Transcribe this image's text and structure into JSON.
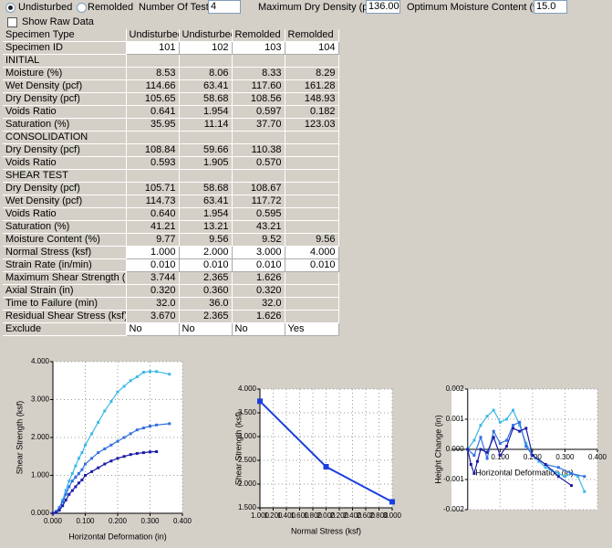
{
  "controls": {
    "type_options": [
      "Undisturbed",
      "Remolded"
    ],
    "number_of_tests_label": "Number Of Tests:",
    "number_of_tests": "4",
    "max_dry_density_label": "Maximum Dry Density (pcf):",
    "max_dry_density": "136.00",
    "optimum_moisture_label": "Optimum Moisture Content (%):",
    "optimum_moisture": "15.0",
    "show_raw_data": "Show Raw Data"
  },
  "table": {
    "rows": [
      {
        "label": "Specimen Type",
        "cells": [
          "Undisturbed",
          "Undisturbed",
          "Remolded",
          "Remolded"
        ]
      },
      {
        "label": "Specimen ID",
        "cells": [
          "101",
          "102",
          "103",
          "104"
        ],
        "editable": true
      },
      {
        "label": "INITIAL"
      },
      {
        "label": "Moisture (%)",
        "cells": [
          "8.53",
          "8.06",
          "8.33",
          "8.29"
        ]
      },
      {
        "label": "Wet Density (pcf)",
        "cells": [
          "114.66",
          "63.41",
          "117.60",
          "161.28"
        ]
      },
      {
        "label": "Dry Density (pcf)",
        "cells": [
          "105.65",
          "58.68",
          "108.56",
          "148.93"
        ]
      },
      {
        "label": "Voids Ratio",
        "cells": [
          "0.641",
          "1.954",
          "0.597",
          "0.182"
        ]
      },
      {
        "label": "Saturation (%)",
        "cells": [
          "35.95",
          "11.14",
          "37.70",
          "123.03"
        ]
      },
      {
        "label": "CONSOLIDATION"
      },
      {
        "label": "Dry Density (pcf)",
        "cells": [
          "108.84",
          "59.66",
          "110.38",
          null
        ]
      },
      {
        "label": "Voids Ratio",
        "cells": [
          "0.593",
          "1.905",
          "0.570",
          null
        ]
      },
      {
        "label": "SHEAR TEST"
      },
      {
        "label": "Dry Density (pcf)",
        "cells": [
          "105.71",
          "58.68",
          "108.67",
          null
        ]
      },
      {
        "label": "Wet Density (pcf)",
        "cells": [
          "114.73",
          "63.41",
          "117.72",
          null
        ]
      },
      {
        "label": "Voids Ratio",
        "cells": [
          "0.640",
          "1.954",
          "0.595",
          null
        ]
      },
      {
        "label": "Saturation (%)",
        "cells": [
          "41.21",
          "13.21",
          "43.21",
          null
        ]
      },
      {
        "label": "Moisture Content (%)",
        "cells": [
          "9.77",
          "9.56",
          "9.52",
          "9.56"
        ]
      },
      {
        "label": "Normal Stress (ksf)",
        "cells": [
          "1.000",
          "2.000",
          "3.000",
          "4.000"
        ],
        "editable": true
      },
      {
        "label": "Strain Rate (in/min)",
        "cells": [
          "0.010",
          "0.010",
          "0.010",
          "0.010"
        ],
        "editable": true
      },
      {
        "label": "Maximum Shear Strength (ksf)",
        "cells": [
          "3.744",
          "2.365",
          "1.626",
          null
        ]
      },
      {
        "label": "Axial Strain (in)",
        "cells": [
          "0.320",
          "0.360",
          "0.320",
          null
        ]
      },
      {
        "label": "Time to Failure (min)",
        "cells": [
          "32.0",
          "36.0",
          "32.0",
          null
        ]
      },
      {
        "label": "Residual Shear Stress (ksf)",
        "cells": [
          "3.670",
          "2.365",
          "1.626",
          null
        ]
      },
      {
        "label": "Exclude",
        "cells": [
          "No",
          "No",
          "No",
          "Yes"
        ],
        "editable": true
      }
    ]
  },
  "chart_data": [
    {
      "type": "line",
      "x_label": "Horizontal Deformation (in)",
      "y_label": "Shear Strength (ksf)",
      "grid": true,
      "xlim": [
        0,
        0.4
      ],
      "ylim": [
        0,
        4
      ],
      "xticks": [
        {
          "value": 0,
          "label": "0.000"
        },
        {
          "value": 0.1,
          "label": "0.100"
        },
        {
          "value": 0.2,
          "label": "0.200"
        },
        {
          "value": 0.3,
          "label": "0.300"
        },
        {
          "value": 0.4,
          "label": "0.400"
        }
      ],
      "yticks": [
        {
          "value": 0,
          "label": "0.000"
        },
        {
          "value": 1,
          "label": "1.000"
        },
        {
          "value": 2,
          "label": "2.000"
        },
        {
          "value": 3,
          "label": "3.000"
        },
        {
          "value": 4,
          "label": "4.000"
        }
      ],
      "series": [
        {
          "color": "#3db8e8",
          "x": [
            0,
            0.01,
            0.02,
            0.03,
            0.04,
            0.05,
            0.06,
            0.07,
            0.08,
            0.09,
            0.1,
            0.12,
            0.14,
            0.16,
            0.18,
            0.2,
            0.22,
            0.24,
            0.26,
            0.28,
            0.3,
            0.32,
            0.36
          ],
          "values": [
            0,
            0.05,
            0.15,
            0.35,
            0.6,
            0.85,
            1.05,
            1.25,
            1.45,
            1.6,
            1.8,
            2.1,
            2.4,
            2.7,
            2.95,
            3.2,
            3.35,
            3.5,
            3.6,
            3.72,
            3.74,
            3.74,
            3.67
          ]
        },
        {
          "color": "#3070e0",
          "x": [
            0,
            0.01,
            0.02,
            0.03,
            0.04,
            0.05,
            0.06,
            0.07,
            0.08,
            0.09,
            0.1,
            0.12,
            0.14,
            0.16,
            0.18,
            0.2,
            0.22,
            0.24,
            0.26,
            0.28,
            0.3,
            0.32,
            0.36
          ],
          "values": [
            0,
            0.05,
            0.15,
            0.3,
            0.5,
            0.7,
            0.85,
            0.95,
            1.05,
            1.15,
            1.3,
            1.45,
            1.6,
            1.7,
            1.8,
            1.9,
            2.0,
            2.1,
            2.2,
            2.25,
            2.3,
            2.33,
            2.365
          ]
        },
        {
          "color": "#1c1ca8",
          "x": [
            0,
            0.01,
            0.02,
            0.03,
            0.04,
            0.05,
            0.06,
            0.07,
            0.08,
            0.09,
            0.1,
            0.12,
            0.14,
            0.16,
            0.18,
            0.2,
            0.22,
            0.24,
            0.26,
            0.28,
            0.3,
            0.32
          ],
          "values": [
            0,
            0.02,
            0.08,
            0.2,
            0.35,
            0.5,
            0.6,
            0.7,
            0.8,
            0.88,
            1.0,
            1.1,
            1.2,
            1.3,
            1.38,
            1.45,
            1.5,
            1.55,
            1.58,
            1.6,
            1.62,
            1.626
          ]
        }
      ]
    },
    {
      "type": "line",
      "x_label": "Normal Stress (ksf)",
      "y_label": "Shear Strength (ksf)",
      "grid": true,
      "xlim": [
        1,
        3
      ],
      "ylim": [
        1.5,
        4
      ],
      "xticks": [
        {
          "value": 1,
          "label": "1.000"
        },
        {
          "value": 1.2,
          "label": "1.200"
        },
        {
          "value": 1.4,
          "label": "1.400"
        },
        {
          "value": 1.6,
          "label": "1.600"
        },
        {
          "value": 1.8,
          "label": "1.800"
        },
        {
          "value": 2,
          "label": "2.000"
        },
        {
          "value": 2.2,
          "label": "2.200"
        },
        {
          "value": 2.4,
          "label": "2.400"
        },
        {
          "value": 2.6,
          "label": "2.600"
        },
        {
          "value": 2.8,
          "label": "2.800"
        },
        {
          "value": 3,
          "label": "3.000"
        }
      ],
      "yticks": [
        {
          "value": 1.5,
          "label": "1.500"
        },
        {
          "value": 2,
          "label": "2.000"
        },
        {
          "value": 2.5,
          "label": "2.500"
        },
        {
          "value": 3,
          "label": "3.000"
        },
        {
          "value": 3.5,
          "label": "3.500"
        },
        {
          "value": 4,
          "label": "4.000"
        }
      ],
      "series": [
        {
          "color": "#1a3ee0",
          "x": [
            1,
            2,
            3
          ],
          "values": [
            3.744,
            2.365,
            1.626
          ]
        }
      ]
    },
    {
      "type": "line",
      "x_label": "Horizontal Deformation (in)",
      "y_label": "Height Change (in)",
      "grid": true,
      "xlim": [
        -0.05,
        0.4
      ],
      "ylim": [
        -0.002,
        0.002
      ],
      "xticks": [
        {
          "value": 0.1,
          "label": "0.100"
        },
        {
          "value": 0.2,
          "label": "0.200"
        },
        {
          "value": 0.3,
          "label": "0.300"
        },
        {
          "value": 0.4,
          "label": "0.400"
        }
      ],
      "yticks": [
        {
          "value": -0.002,
          "label": "-0.002"
        },
        {
          "value": -0.001,
          "label": "-0.001"
        },
        {
          "value": 0,
          "label": "0.000"
        },
        {
          "value": 0.001,
          "label": "0.001"
        },
        {
          "value": 0.002,
          "label": "0.002"
        }
      ],
      "series": [
        {
          "color": "#3db8e8",
          "x": [
            0,
            0.02,
            0.04,
            0.06,
            0.08,
            0.1,
            0.12,
            0.14,
            0.16,
            0.18,
            0.2,
            0.22,
            0.24,
            0.26,
            0.28,
            0.3,
            0.32,
            0.34,
            0.36
          ],
          "values": [
            0,
            0.0003,
            0.0008,
            0.0011,
            0.0013,
            0.0009,
            0.001,
            0.0013,
            0.0008,
            0.0002,
            -0.0002,
            -0.0004,
            -0.0006,
            -0.0007,
            -0.0008,
            -0.0009,
            -0.0008,
            -0.0009,
            -0.0014
          ]
        },
        {
          "color": "#3070e0",
          "x": [
            0,
            0.02,
            0.04,
            0.06,
            0.08,
            0.1,
            0.12,
            0.14,
            0.16,
            0.18,
            0.2,
            0.24,
            0.28,
            0.32,
            0.36
          ],
          "values": [
            0,
            -0.0002,
            0.0004,
            -0.0003,
            0.0006,
            0.0002,
            0.0003,
            0.0008,
            0.0009,
            0.0001,
            -0.0002,
            -0.0005,
            -0.0006,
            -0.0008,
            -0.0009
          ]
        },
        {
          "color": "#1c1ca8",
          "x": [
            0,
            0.01,
            0.02,
            0.03,
            0.04,
            0.06,
            0.08,
            0.1,
            0.12,
            0.14,
            0.16,
            0.18,
            0.2,
            0.24,
            0.28,
            0.32
          ],
          "values": [
            0,
            -0.0005,
            -0.0008,
            -0.0004,
            0,
            -0.0001,
            0.0004,
            -0.0002,
            0.0001,
            0.0007,
            0.0006,
            0.0007,
            -0.0002,
            -0.0005,
            -0.0009,
            -0.0012
          ]
        }
      ]
    }
  ]
}
